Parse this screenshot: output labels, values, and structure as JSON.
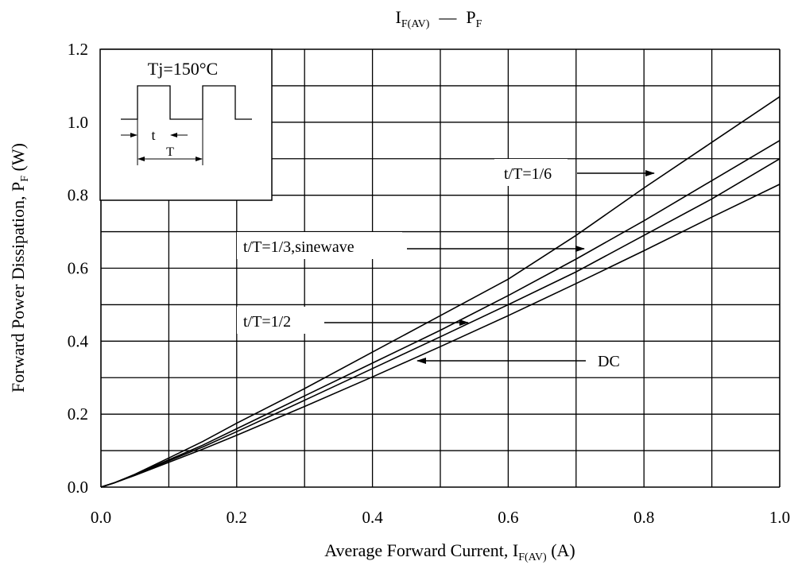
{
  "chart_data": {
    "type": "line",
    "title": {
      "base": "I",
      "sub": "F(AV)",
      "dash": "—",
      "base2": "P",
      "sub2": "F"
    },
    "xlabel": {
      "pre": "Average Forward Current, I",
      "sub": "F(AV)",
      "post": " (A)"
    },
    "ylabel": {
      "pre": "Forward Power Dissipation, P",
      "sub": "F",
      "post": " (W)"
    },
    "xlim": [
      0,
      1.0
    ],
    "ylim": [
      0,
      1.2
    ],
    "xticks": [
      "0.0",
      "0.2",
      "0.4",
      "0.6",
      "0.8",
      "1.0"
    ],
    "yticks": [
      "0.0",
      "0.2",
      "0.4",
      "0.6",
      "0.8",
      "1.0",
      "1.2"
    ],
    "grid": true,
    "series": [
      {
        "name": "t/T=1/6",
        "x": [
          0,
          0.02,
          0.05,
          0.1,
          0.15,
          0.2,
          0.3,
          0.4,
          0.5,
          0.6,
          0.7,
          0.8,
          0.9,
          1.0
        ],
        "y": [
          0,
          0.012,
          0.035,
          0.08,
          0.125,
          0.175,
          0.27,
          0.37,
          0.47,
          0.57,
          0.69,
          0.82,
          0.945,
          1.07
        ]
      },
      {
        "name": "t/T=1/3,sinewave",
        "x": [
          0,
          0.02,
          0.05,
          0.1,
          0.15,
          0.2,
          0.3,
          0.4,
          0.5,
          0.6,
          0.7,
          0.8,
          0.9,
          1.0
        ],
        "y": [
          0,
          0.012,
          0.034,
          0.075,
          0.115,
          0.16,
          0.25,
          0.34,
          0.43,
          0.525,
          0.625,
          0.73,
          0.84,
          0.95
        ]
      },
      {
        "name": "t/T=1/2",
        "x": [
          0,
          0.02,
          0.05,
          0.1,
          0.15,
          0.2,
          0.3,
          0.4,
          0.5,
          0.6,
          0.7,
          0.8,
          0.9,
          1.0
        ],
        "y": [
          0,
          0.012,
          0.033,
          0.072,
          0.11,
          0.152,
          0.238,
          0.325,
          0.412,
          0.5,
          0.59,
          0.69,
          0.79,
          0.9
        ]
      },
      {
        "name": "DC",
        "x": [
          0,
          0.02,
          0.05,
          0.1,
          0.15,
          0.2,
          0.3,
          0.4,
          0.5,
          0.6,
          0.7,
          0.8,
          0.9,
          1.0
        ],
        "y": [
          0,
          0.012,
          0.032,
          0.068,
          0.104,
          0.142,
          0.221,
          0.302,
          0.385,
          0.47,
          0.558,
          0.648,
          0.74,
          0.83
        ]
      }
    ],
    "annotations": [
      {
        "text": "t/T=1/6",
        "series": 0
      },
      {
        "text": "t/T=1/3,sinewave",
        "series": 1
      },
      {
        "text": "t/T=1/2",
        "series": 2
      },
      {
        "text": "DC",
        "series": 3
      }
    ],
    "inset": {
      "condition": "Tj=150°C",
      "t_label": "t",
      "T_label": "T"
    }
  }
}
